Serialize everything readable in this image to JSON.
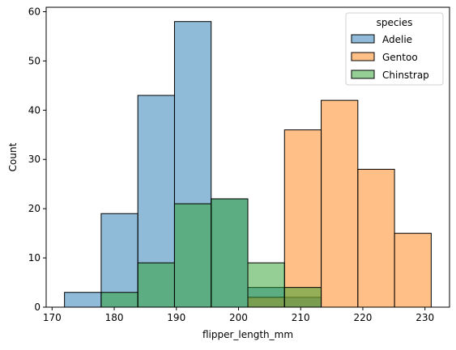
{
  "chart_data": {
    "type": "bar",
    "xlabel": "flipper_length_mm",
    "ylabel": "Count",
    "xlim": [
      169.05,
      233.95
    ],
    "ylim": [
      0,
      60.9
    ],
    "x_ticks": [
      170,
      180,
      190,
      200,
      210,
      220,
      230
    ],
    "y_ticks": [
      0,
      10,
      20,
      30,
      40,
      50,
      60
    ],
    "bin_edges": [
      172.0,
      177.9,
      183.8,
      189.7,
      195.6,
      201.5,
      207.4,
      213.3,
      219.2,
      225.1,
      231.0
    ],
    "legend": {
      "title": "species",
      "placement": "top-right"
    },
    "grid": false,
    "series": [
      {
        "name": "Adelie",
        "color": "#1f77b4",
        "values": [
          3,
          19,
          43,
          58,
          22,
          4,
          2,
          0,
          0,
          0
        ]
      },
      {
        "name": "Gentoo",
        "color": "#ff7f0e",
        "values": [
          0,
          0,
          0,
          0,
          0,
          2,
          36,
          42,
          28,
          15
        ]
      },
      {
        "name": "Chinstrap",
        "color": "#2ca02c",
        "values": [
          0,
          3,
          9,
          21,
          22,
          9,
          4,
          0,
          0,
          0
        ]
      }
    ]
  }
}
